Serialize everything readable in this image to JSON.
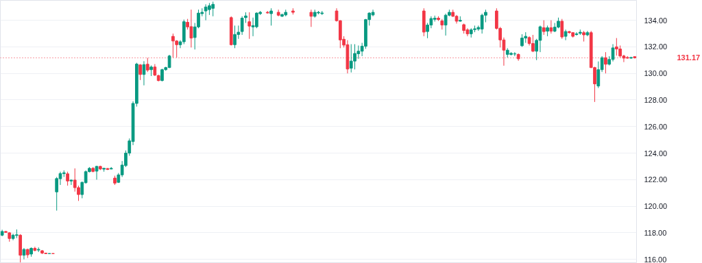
{
  "chart_data": {
    "type": "candlestick",
    "categories": [
      null,
      null,
      null,
      null,
      null,
      null,
      null,
      null,
      null,
      null,
      null,
      null,
      null,
      null,
      null,
      null,
      null,
      null,
      null,
      null,
      null,
      null,
      null,
      null,
      null,
      null,
      null,
      null,
      null,
      null,
      null,
      null,
      null,
      null,
      null,
      null,
      null,
      null,
      null,
      null,
      null,
      null,
      null,
      null,
      null,
      null,
      null,
      null,
      null,
      null,
      null,
      null,
      null,
      null,
      null,
      null,
      null,
      null,
      null,
      null,
      null,
      null,
      null,
      null,
      null,
      null,
      null,
      null,
      null,
      null,
      null,
      null,
      null,
      null,
      null,
      null,
      null,
      null,
      null,
      null,
      null,
      null,
      null,
      null,
      null,
      null,
      null,
      null,
      null,
      null,
      null,
      null,
      null,
      null,
      null,
      null,
      null,
      null,
      null,
      null,
      null,
      null,
      null,
      null,
      null,
      null,
      null,
      null,
      null,
      null,
      null,
      null,
      null,
      null,
      null,
      null,
      null,
      null,
      null,
      null,
      null,
      null,
      null,
      null,
      null,
      null,
      null,
      null,
      null,
      null,
      null,
      null,
      null,
      null,
      null,
      null,
      null,
      null,
      null,
      null,
      null,
      null,
      null,
      null,
      null,
      null,
      null,
      null,
      null,
      null,
      null,
      null,
      null,
      null,
      null,
      null,
      null,
      null,
      null,
      null,
      null,
      null,
      null,
      null,
      null,
      null,
      null,
      null,
      null,
      null,
      null,
      null,
      null,
      null,
      null
    ],
    "ohlc": [
      [
        117.82,
        118.23,
        117.74,
        118.1
      ],
      [
        118.1,
        118.13,
        118.0,
        118.03
      ],
      [
        118.0,
        118.05,
        117.33,
        117.57
      ],
      [
        117.57,
        117.93,
        117.44,
        117.82
      ],
      [
        117.8,
        118.25,
        117.6,
        117.85
      ],
      [
        117.82,
        117.9,
        115.77,
        116.31
      ],
      [
        116.31,
        116.85,
        116.0,
        116.75
      ],
      [
        116.75,
        116.8,
        116.1,
        116.34
      ],
      [
        116.4,
        116.9,
        116.2,
        116.83
      ],
      [
        116.83,
        116.95,
        116.6,
        116.67
      ],
      [
        116.7,
        116.9,
        116.55,
        116.75
      ],
      [
        116.65,
        116.7,
        116.4,
        116.47
      ],
      [
        116.47,
        116.48,
        116.42,
        116.43
      ],
      [
        116.43,
        116.45,
        116.42,
        116.44
      ],
      [
        116.44,
        116.45,
        116.42,
        116.43
      ],
      [
        121.08,
        122.2,
        119.67,
        122.08
      ],
      [
        122.07,
        122.6,
        121.6,
        122.46
      ],
      [
        122.45,
        122.7,
        122.2,
        122.52
      ],
      [
        122.44,
        122.6,
        121.55,
        121.9
      ],
      [
        121.9,
        122.0,
        121.6,
        121.97
      ],
      [
        121.97,
        122.85,
        121.1,
        121.4
      ],
      [
        121.4,
        121.55,
        120.4,
        120.88
      ],
      [
        120.88,
        121.85,
        120.6,
        121.8
      ],
      [
        121.77,
        122.7,
        121.7,
        122.6
      ],
      [
        122.6,
        122.95,
        122.55,
        122.85
      ],
      [
        122.85,
        122.95,
        122.55,
        122.62
      ],
      [
        122.64,
        123.05,
        122.0,
        123.0
      ],
      [
        123.0,
        123.05,
        122.72,
        122.8
      ],
      [
        122.79,
        122.9,
        122.6,
        122.85
      ],
      [
        122.84,
        122.87,
        122.72,
        122.77
      ],
      [
        122.8,
        122.95,
        122.78,
        122.85
      ],
      [
        122.12,
        122.3,
        121.6,
        121.74
      ],
      [
        121.8,
        122.5,
        121.75,
        122.36
      ],
      [
        122.36,
        123.4,
        122.2,
        123.1
      ],
      [
        123.06,
        124.2,
        122.95,
        124.0
      ],
      [
        124.0,
        125.1,
        123.8,
        124.92
      ],
      [
        124.87,
        127.9,
        124.6,
        127.74
      ],
      [
        127.74,
        130.8,
        127.5,
        130.7
      ],
      [
        130.64,
        130.7,
        129.5,
        129.92
      ],
      [
        129.92,
        130.92,
        129.1,
        130.66
      ],
      [
        130.69,
        131.17,
        130.1,
        130.25
      ],
      [
        130.28,
        130.6,
        129.8,
        130.48
      ],
      [
        130.48,
        130.7,
        129.8,
        129.87
      ],
      [
        129.84,
        129.9,
        129.4,
        129.46
      ],
      [
        129.46,
        130.35,
        129.4,
        130.28
      ],
      [
        130.28,
        130.5,
        130.2,
        130.44
      ],
      [
        130.44,
        131.4,
        130.4,
        131.31
      ],
      [
        132.79,
        133.0,
        131.2,
        132.44
      ],
      [
        132.44,
        132.5,
        131.2,
        132.16
      ],
      [
        132.16,
        132.5,
        131.9,
        132.38
      ],
      [
        132.38,
        134.05,
        132.2,
        133.89
      ],
      [
        133.85,
        134.1,
        133.3,
        133.5
      ],
      [
        133.52,
        134.8,
        131.95,
        132.66
      ],
      [
        132.7,
        133.8,
        131.8,
        133.5
      ],
      [
        133.5,
        134.8,
        133.4,
        134.54
      ],
      [
        134.5,
        134.9,
        134.3,
        134.6
      ],
      [
        134.7,
        135.2,
        134.0,
        135.0
      ],
      [
        134.8,
        135.3,
        134.4,
        135.1
      ],
      [
        134.9,
        135.4,
        134.3,
        135.2
      ],
      null,
      null,
      null,
      null,
      [
        134.2,
        134.3,
        132.1,
        132.16
      ],
      [
        132.16,
        133.6,
        131.9,
        132.93
      ],
      [
        132.93,
        133.6,
        132.6,
        133.1
      ],
      [
        133.15,
        134.3,
        132.9,
        134.16
      ],
      [
        134.2,
        134.6,
        133.8,
        134.33
      ],
      [
        133.89,
        134.6,
        132.6,
        133.56
      ],
      [
        133.5,
        134.2,
        132.8,
        133.6
      ],
      [
        133.51,
        134.6,
        133.4,
        134.54
      ],
      [
        134.5,
        134.7,
        134.4,
        134.6
      ],
      null,
      [
        134.6,
        134.7,
        134.5,
        134.55
      ],
      [
        134.5,
        134.9,
        133.6,
        134.7
      ],
      null,
      [
        134.6,
        134.8,
        134.3,
        134.38
      ],
      [
        134.3,
        134.5,
        134.25,
        134.43
      ],
      [
        134.4,
        134.8,
        134.3,
        134.6
      ],
      null,
      [
        134.7,
        134.9,
        134.43,
        134.6
      ],
      null,
      null,
      null,
      null,
      [
        134.6,
        134.8,
        133.5,
        134.3
      ],
      [
        134.3,
        134.8,
        134.2,
        134.6
      ],
      [
        134.55,
        134.7,
        134.45,
        134.6
      ],
      [
        134.5,
        134.7,
        134.4,
        134.55
      ],
      null,
      null,
      null,
      [
        134.7,
        134.9,
        133.9,
        133.97
      ],
      [
        133.97,
        134.0,
        131.9,
        132.52
      ],
      [
        132.57,
        132.8,
        131.95,
        132.13
      ],
      [
        132.16,
        132.5,
        130.0,
        130.33
      ],
      [
        130.39,
        132.2,
        130.07,
        130.93
      ],
      [
        130.93,
        132.2,
        130.3,
        131.5
      ],
      [
        131.48,
        132.1,
        131.1,
        131.67
      ],
      [
        131.67,
        132.3,
        131.3,
        132.05
      ],
      [
        132.05,
        134.1,
        131.85,
        134.05
      ],
      [
        134.05,
        134.6,
        133.6,
        134.54
      ],
      [
        134.4,
        134.8,
        134.3,
        134.6
      ],
      null,
      null,
      null,
      null,
      null,
      null,
      null,
      null,
      null,
      null,
      null,
      null,
      null,
      [
        134.7,
        134.9,
        132.8,
        133.11
      ],
      [
        133.15,
        133.8,
        132.65,
        133.64
      ],
      [
        133.64,
        134.3,
        133.4,
        134.13
      ],
      [
        134.07,
        134.35,
        133.9,
        134.16
      ],
      [
        134.16,
        134.3,
        133.95,
        134.05
      ],
      [
        133.95,
        134.1,
        133.3,
        133.64
      ],
      [
        133.64,
        134.5,
        132.85,
        134.38
      ],
      [
        134.38,
        134.8,
        134.3,
        134.6
      ],
      [
        134.6,
        134.8,
        134.25,
        134.3
      ],
      [
        134.3,
        134.4,
        133.75,
        133.93
      ],
      [
        133.93,
        134.3,
        133.9,
        134.0
      ],
      [
        133.67,
        133.75,
        133.0,
        133.23
      ],
      [
        133.28,
        133.4,
        132.8,
        132.98
      ],
      [
        132.98,
        133.4,
        132.7,
        133.28
      ],
      [
        133.3,
        133.6,
        133.1,
        133.36
      ],
      [
        133.34,
        133.6,
        133.2,
        133.46
      ],
      [
        133.34,
        134.5,
        133.0,
        134.38
      ],
      [
        134.38,
        134.8,
        133.85,
        134.6
      ],
      null,
      null,
      [
        134.7,
        134.9,
        133.3,
        133.39
      ],
      [
        133.39,
        133.5,
        131.95,
        132.52
      ],
      [
        132.52,
        132.7,
        130.58,
        131.75
      ],
      [
        131.43,
        131.9,
        131.2,
        131.75
      ],
      [
        131.43,
        131.6,
        131.35,
        131.51
      ],
      [
        131.46,
        131.6,
        131.3,
        131.48
      ],
      [
        131.43,
        131.5,
        130.95,
        131.1
      ],
      [
        132.08,
        132.95,
        132.0,
        132.66
      ],
      [
        132.66,
        133.1,
        132.3,
        132.79
      ],
      [
        132.7,
        132.8,
        132.1,
        132.25
      ],
      [
        132.25,
        132.9,
        131.6,
        131.67
      ],
      [
        131.67,
        132.6,
        131.0,
        132.49
      ],
      [
        132.49,
        133.6,
        131.6,
        133.51
      ],
      [
        133.44,
        134.0,
        132.9,
        133.15
      ],
      [
        133.18,
        133.6,
        132.8,
        133.44
      ],
      [
        133.44,
        134.0,
        133.0,
        133.18
      ],
      [
        133.18,
        133.8,
        133.1,
        133.48
      ],
      [
        133.48,
        134.2,
        133.4,
        133.93
      ],
      [
        133.93,
        134.1,
        132.6,
        132.74
      ],
      [
        132.79,
        133.3,
        132.5,
        133.15
      ],
      [
        133.15,
        133.2,
        133.0,
        133.07
      ],
      [
        133.07,
        133.1,
        132.7,
        132.79
      ],
      [
        132.92,
        133.1,
        132.85,
        132.98
      ],
      [
        133.02,
        133.3,
        132.9,
        133.1
      ],
      [
        133.07,
        133.2,
        132.4,
        132.9
      ],
      [
        132.9,
        133.2,
        132.8,
        133.07
      ],
      [
        133.07,
        133.2,
        130.4,
        130.44
      ],
      [
        130.44,
        130.5,
        127.85,
        129.21
      ],
      [
        129.05,
        130.9,
        128.9,
        130.28
      ],
      [
        130.28,
        131.3,
        130.1,
        131.18
      ],
      [
        131.18,
        131.6,
        130.0,
        130.69
      ],
      [
        130.69,
        131.3,
        130.6,
        131.05
      ],
      [
        131.05,
        132.2,
        130.9,
        131.92
      ],
      [
        132.0,
        132.66,
        131.34,
        131.84
      ],
      [
        131.84,
        132.1,
        131.2,
        131.31
      ],
      [
        131.31,
        131.4,
        130.85,
        131.15
      ],
      [
        131.2,
        131.3,
        131.1,
        131.15
      ],
      [
        131.15,
        131.25,
        131.1,
        131.2
      ],
      [
        131.26,
        131.28,
        131.12,
        131.17
      ]
    ],
    "ylim": [
      115.7,
      135.5
    ],
    "yticks": [
      {
        "value": 116,
        "label": "116.00"
      },
      {
        "value": 118,
        "label": "118.00"
      },
      {
        "value": 120,
        "label": "120.00"
      },
      {
        "value": 122,
        "label": "122.00"
      },
      {
        "value": 124,
        "label": "124.00"
      },
      {
        "value": 126,
        "label": "126.00"
      },
      {
        "value": 128,
        "label": "128.00"
      },
      {
        "value": 130,
        "label": "130.00"
      },
      {
        "value": 132,
        "label": "132.00"
      },
      {
        "value": 134,
        "label": "134.00"
      }
    ],
    "ref_lines": [
      {
        "axis": "y",
        "value": 131.17,
        "label": "131.17",
        "color": "#f23645",
        "line_style": "dotted"
      }
    ],
    "grid": "y",
    "tick_labels": "y"
  }
}
